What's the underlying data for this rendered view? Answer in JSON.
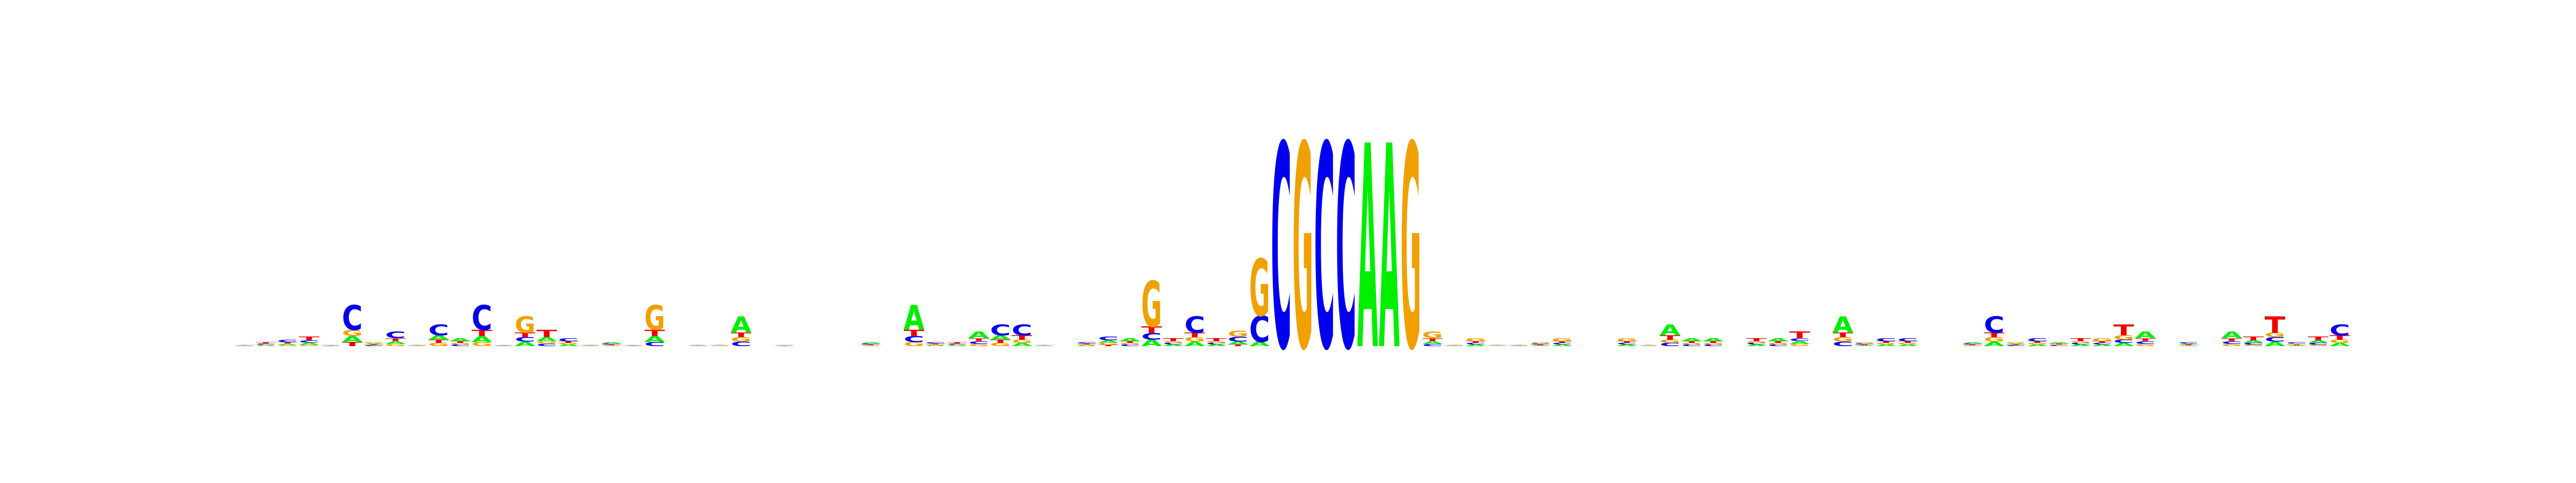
{
  "chart_data": {
    "type": "sequence-logo",
    "alphabet": [
      "A",
      "C",
      "G",
      "T"
    ],
    "colors": {
      "A": "#00ee00",
      "C": "#0000ee",
      "G": "#f0a000",
      "T": "#ee0000"
    },
    "ylim": [
      0,
      2
    ],
    "positions": [
      {
        "A": 0.3,
        "C": 0.25,
        "G": 0.2,
        "T": 0.25
      },
      {
        "A": 0.2,
        "C": 0.25,
        "G": 0.2,
        "T": 0.35
      },
      {
        "A": 0.22,
        "C": 0.38,
        "G": 0.18,
        "T": 0.22
      },
      {
        "A": 0.2,
        "C": 0.25,
        "G": 0.15,
        "T": 0.4
      },
      {
        "A": 0.3,
        "C": 0.25,
        "G": 0.25,
        "T": 0.2
      },
      {
        "A": 0.15,
        "C": 0.6,
        "G": 0.15,
        "T": 0.1
      },
      {
        "A": 0.25,
        "C": 0.2,
        "G": 0.35,
        "T": 0.2
      },
      {
        "A": 0.2,
        "C": 0.45,
        "G": 0.15,
        "T": 0.2
      },
      {
        "A": 0.3,
        "C": 0.25,
        "G": 0.2,
        "T": 0.25
      },
      {
        "A": 0.2,
        "C": 0.5,
        "G": 0.15,
        "T": 0.15
      },
      {
        "A": 0.4,
        "C": 0.2,
        "G": 0.2,
        "T": 0.2
      },
      {
        "A": 0.15,
        "C": 0.6,
        "G": 0.1,
        "T": 0.15
      },
      {
        "A": 0.25,
        "C": 0.2,
        "G": 0.3,
        "T": 0.25
      },
      {
        "A": 0.15,
        "C": 0.15,
        "G": 0.55,
        "T": 0.15
      },
      {
        "A": 0.25,
        "C": 0.15,
        "G": 0.15,
        "T": 0.45
      },
      {
        "A": 0.2,
        "C": 0.4,
        "G": 0.2,
        "T": 0.2
      },
      {
        "A": 0.3,
        "C": 0.2,
        "G": 0.25,
        "T": 0.25
      },
      {
        "A": 0.35,
        "C": 0.25,
        "G": 0.2,
        "T": 0.2
      },
      {
        "A": 0.25,
        "C": 0.2,
        "G": 0.3,
        "T": 0.25
      },
      {
        "A": 0.15,
        "C": 0.1,
        "G": 0.6,
        "T": 0.15
      },
      {
        "A": 0.25,
        "C": 0.25,
        "G": 0.25,
        "T": 0.25
      },
      {
        "A": 0.3,
        "C": 0.25,
        "G": 0.2,
        "T": 0.25
      },
      {
        "A": 0.2,
        "C": 0.25,
        "G": 0.25,
        "T": 0.3
      },
      {
        "A": 0.55,
        "C": 0.15,
        "G": 0.15,
        "T": 0.15
      },
      {
        "A": 0.25,
        "C": 0.25,
        "G": 0.25,
        "T": 0.25
      },
      {
        "A": 0.3,
        "C": 0.25,
        "G": 0.25,
        "T": 0.2
      },
      {
        "A": 0.25,
        "C": 0.25,
        "G": 0.25,
        "T": 0.25
      },
      {
        "A": 0.25,
        "C": 0.25,
        "G": 0.25,
        "T": 0.25
      },
      {
        "A": 0.25,
        "C": 0.25,
        "G": 0.25,
        "T": 0.25
      },
      {
        "A": 0.35,
        "C": 0.25,
        "G": 0.2,
        "T": 0.2
      },
      {
        "A": 0.25,
        "C": 0.25,
        "G": 0.25,
        "T": 0.25
      },
      {
        "A": 0.6,
        "C": 0.15,
        "G": 0.1,
        "T": 0.15
      },
      {
        "A": 0.2,
        "C": 0.35,
        "G": 0.2,
        "T": 0.25
      },
      {
        "A": 0.2,
        "C": 0.25,
        "G": 0.2,
        "T": 0.35
      },
      {
        "A": 0.45,
        "C": 0.2,
        "G": 0.15,
        "T": 0.2
      },
      {
        "A": 0.2,
        "C": 0.5,
        "G": 0.15,
        "T": 0.15
      },
      {
        "A": 0.15,
        "C": 0.5,
        "G": 0.15,
        "T": 0.2
      },
      {
        "A": 0.3,
        "C": 0.2,
        "G": 0.25,
        "T": 0.25
      },
      {
        "A": 0.25,
        "C": 0.25,
        "G": 0.25,
        "T": 0.25
      },
      {
        "A": 0.2,
        "C": 0.35,
        "G": 0.2,
        "T": 0.25
      },
      {
        "A": 0.25,
        "C": 0.4,
        "G": 0.2,
        "T": 0.15
      },
      {
        "A": 0.4,
        "C": 0.2,
        "G": 0.2,
        "T": 0.2
      },
      {
        "A": 0.1,
        "C": 0.1,
        "G": 0.7,
        "T": 0.1
      },
      {
        "A": 0.2,
        "C": 0.2,
        "G": 0.2,
        "T": 0.4
      },
      {
        "A": 0.15,
        "C": 0.55,
        "G": 0.15,
        "T": 0.15
      },
      {
        "A": 0.2,
        "C": 0.2,
        "G": 0.2,
        "T": 0.4
      },
      {
        "A": 0.2,
        "C": 0.3,
        "G": 0.4,
        "T": 0.1
      },
      {
        "A": 0.05,
        "C": 0.3,
        "G": 0.65,
        "T": 0.0
      },
      {
        "A": 0.0,
        "C": 1.0,
        "G": 0.0,
        "T": 0.0
      },
      {
        "A": 0.0,
        "C": 0.0,
        "G": 1.0,
        "T": 0.0
      },
      {
        "A": 0.0,
        "C": 1.0,
        "G": 0.0,
        "T": 0.0
      },
      {
        "A": 0.0,
        "C": 1.0,
        "G": 0.0,
        "T": 0.0
      },
      {
        "A": 1.0,
        "C": 0.0,
        "G": 0.0,
        "T": 0.0
      },
      {
        "A": 1.0,
        "C": 0.0,
        "G": 0.0,
        "T": 0.0
      },
      {
        "A": 0.0,
        "C": 0.0,
        "G": 1.0,
        "T": 0.0
      },
      {
        "A": 0.2,
        "C": 0.15,
        "G": 0.45,
        "T": 0.2
      },
      {
        "A": 0.3,
        "C": 0.25,
        "G": 0.2,
        "T": 0.25
      },
      {
        "A": 0.2,
        "C": 0.2,
        "G": 0.4,
        "T": 0.2
      },
      {
        "A": 0.25,
        "C": 0.3,
        "G": 0.2,
        "T": 0.25
      },
      {
        "A": 0.3,
        "C": 0.25,
        "G": 0.2,
        "T": 0.25
      },
      {
        "A": 0.2,
        "C": 0.25,
        "G": 0.35,
        "T": 0.2
      },
      {
        "A": 0.2,
        "C": 0.2,
        "G": 0.4,
        "T": 0.2
      },
      {
        "A": 0.25,
        "C": 0.25,
        "G": 0.25,
        "T": 0.25
      },
      {
        "A": 0.25,
        "C": 0.25,
        "G": 0.25,
        "T": 0.25
      },
      {
        "A": 0.2,
        "C": 0.2,
        "G": 0.4,
        "T": 0.2
      },
      {
        "A": 0.25,
        "C": 0.2,
        "G": 0.25,
        "T": 0.3
      },
      {
        "A": 0.5,
        "C": 0.15,
        "G": 0.15,
        "T": 0.2
      },
      {
        "A": 0.4,
        "C": 0.2,
        "G": 0.2,
        "T": 0.2
      },
      {
        "A": 0.4,
        "C": 0.2,
        "G": 0.2,
        "T": 0.2
      },
      {
        "A": 0.25,
        "C": 0.25,
        "G": 0.25,
        "T": 0.25
      },
      {
        "A": 0.2,
        "C": 0.2,
        "G": 0.2,
        "T": 0.4
      },
      {
        "A": 0.4,
        "C": 0.2,
        "G": 0.2,
        "T": 0.2
      },
      {
        "A": 0.2,
        "C": 0.2,
        "G": 0.15,
        "T": 0.45
      },
      {
        "A": 0.25,
        "C": 0.25,
        "G": 0.25,
        "T": 0.25
      },
      {
        "A": 0.55,
        "C": 0.15,
        "G": 0.15,
        "T": 0.15
      },
      {
        "A": 0.2,
        "C": 0.25,
        "G": 0.35,
        "T": 0.2
      },
      {
        "A": 0.2,
        "C": 0.4,
        "G": 0.2,
        "T": 0.2
      },
      {
        "A": 0.2,
        "C": 0.4,
        "G": 0.2,
        "T": 0.2
      },
      {
        "A": 0.25,
        "C": 0.25,
        "G": 0.25,
        "T": 0.25
      },
      {
        "A": 0.25,
        "C": 0.25,
        "G": 0.25,
        "T": 0.25
      },
      {
        "A": 0.35,
        "C": 0.25,
        "G": 0.2,
        "T": 0.2
      },
      {
        "A": 0.15,
        "C": 0.55,
        "G": 0.15,
        "T": 0.15
      },
      {
        "A": 0.25,
        "C": 0.2,
        "G": 0.35,
        "T": 0.2
      },
      {
        "A": 0.2,
        "C": 0.4,
        "G": 0.2,
        "T": 0.2
      },
      {
        "A": 0.35,
        "C": 0.2,
        "G": 0.2,
        "T": 0.25
      },
      {
        "A": 0.2,
        "C": 0.2,
        "G": 0.2,
        "T": 0.4
      },
      {
        "A": 0.2,
        "C": 0.2,
        "G": 0.4,
        "T": 0.2
      },
      {
        "A": 0.15,
        "C": 0.15,
        "G": 0.2,
        "T": 0.5
      },
      {
        "A": 0.45,
        "C": 0.2,
        "G": 0.15,
        "T": 0.2
      },
      {
        "A": 0.25,
        "C": 0.25,
        "G": 0.25,
        "T": 0.25
      },
      {
        "A": 0.25,
        "C": 0.35,
        "G": 0.2,
        "T": 0.2
      },
      {
        "A": 0.25,
        "C": 0.25,
        "G": 0.25,
        "T": 0.25
      },
      {
        "A": 0.45,
        "C": 0.2,
        "G": 0.15,
        "T": 0.2
      },
      {
        "A": 0.25,
        "C": 0.2,
        "G": 0.15,
        "T": 0.4
      },
      {
        "A": 0.15,
        "C": 0.15,
        "G": 0.15,
        "T": 0.55
      },
      {
        "A": 0.2,
        "C": 0.35,
        "G": 0.25,
        "T": 0.2
      },
      {
        "A": 0.25,
        "C": 0.2,
        "G": 0.15,
        "T": 0.4
      },
      {
        "A": 0.15,
        "C": 0.5,
        "G": 0.15,
        "T": 0.2
      }
    ]
  }
}
